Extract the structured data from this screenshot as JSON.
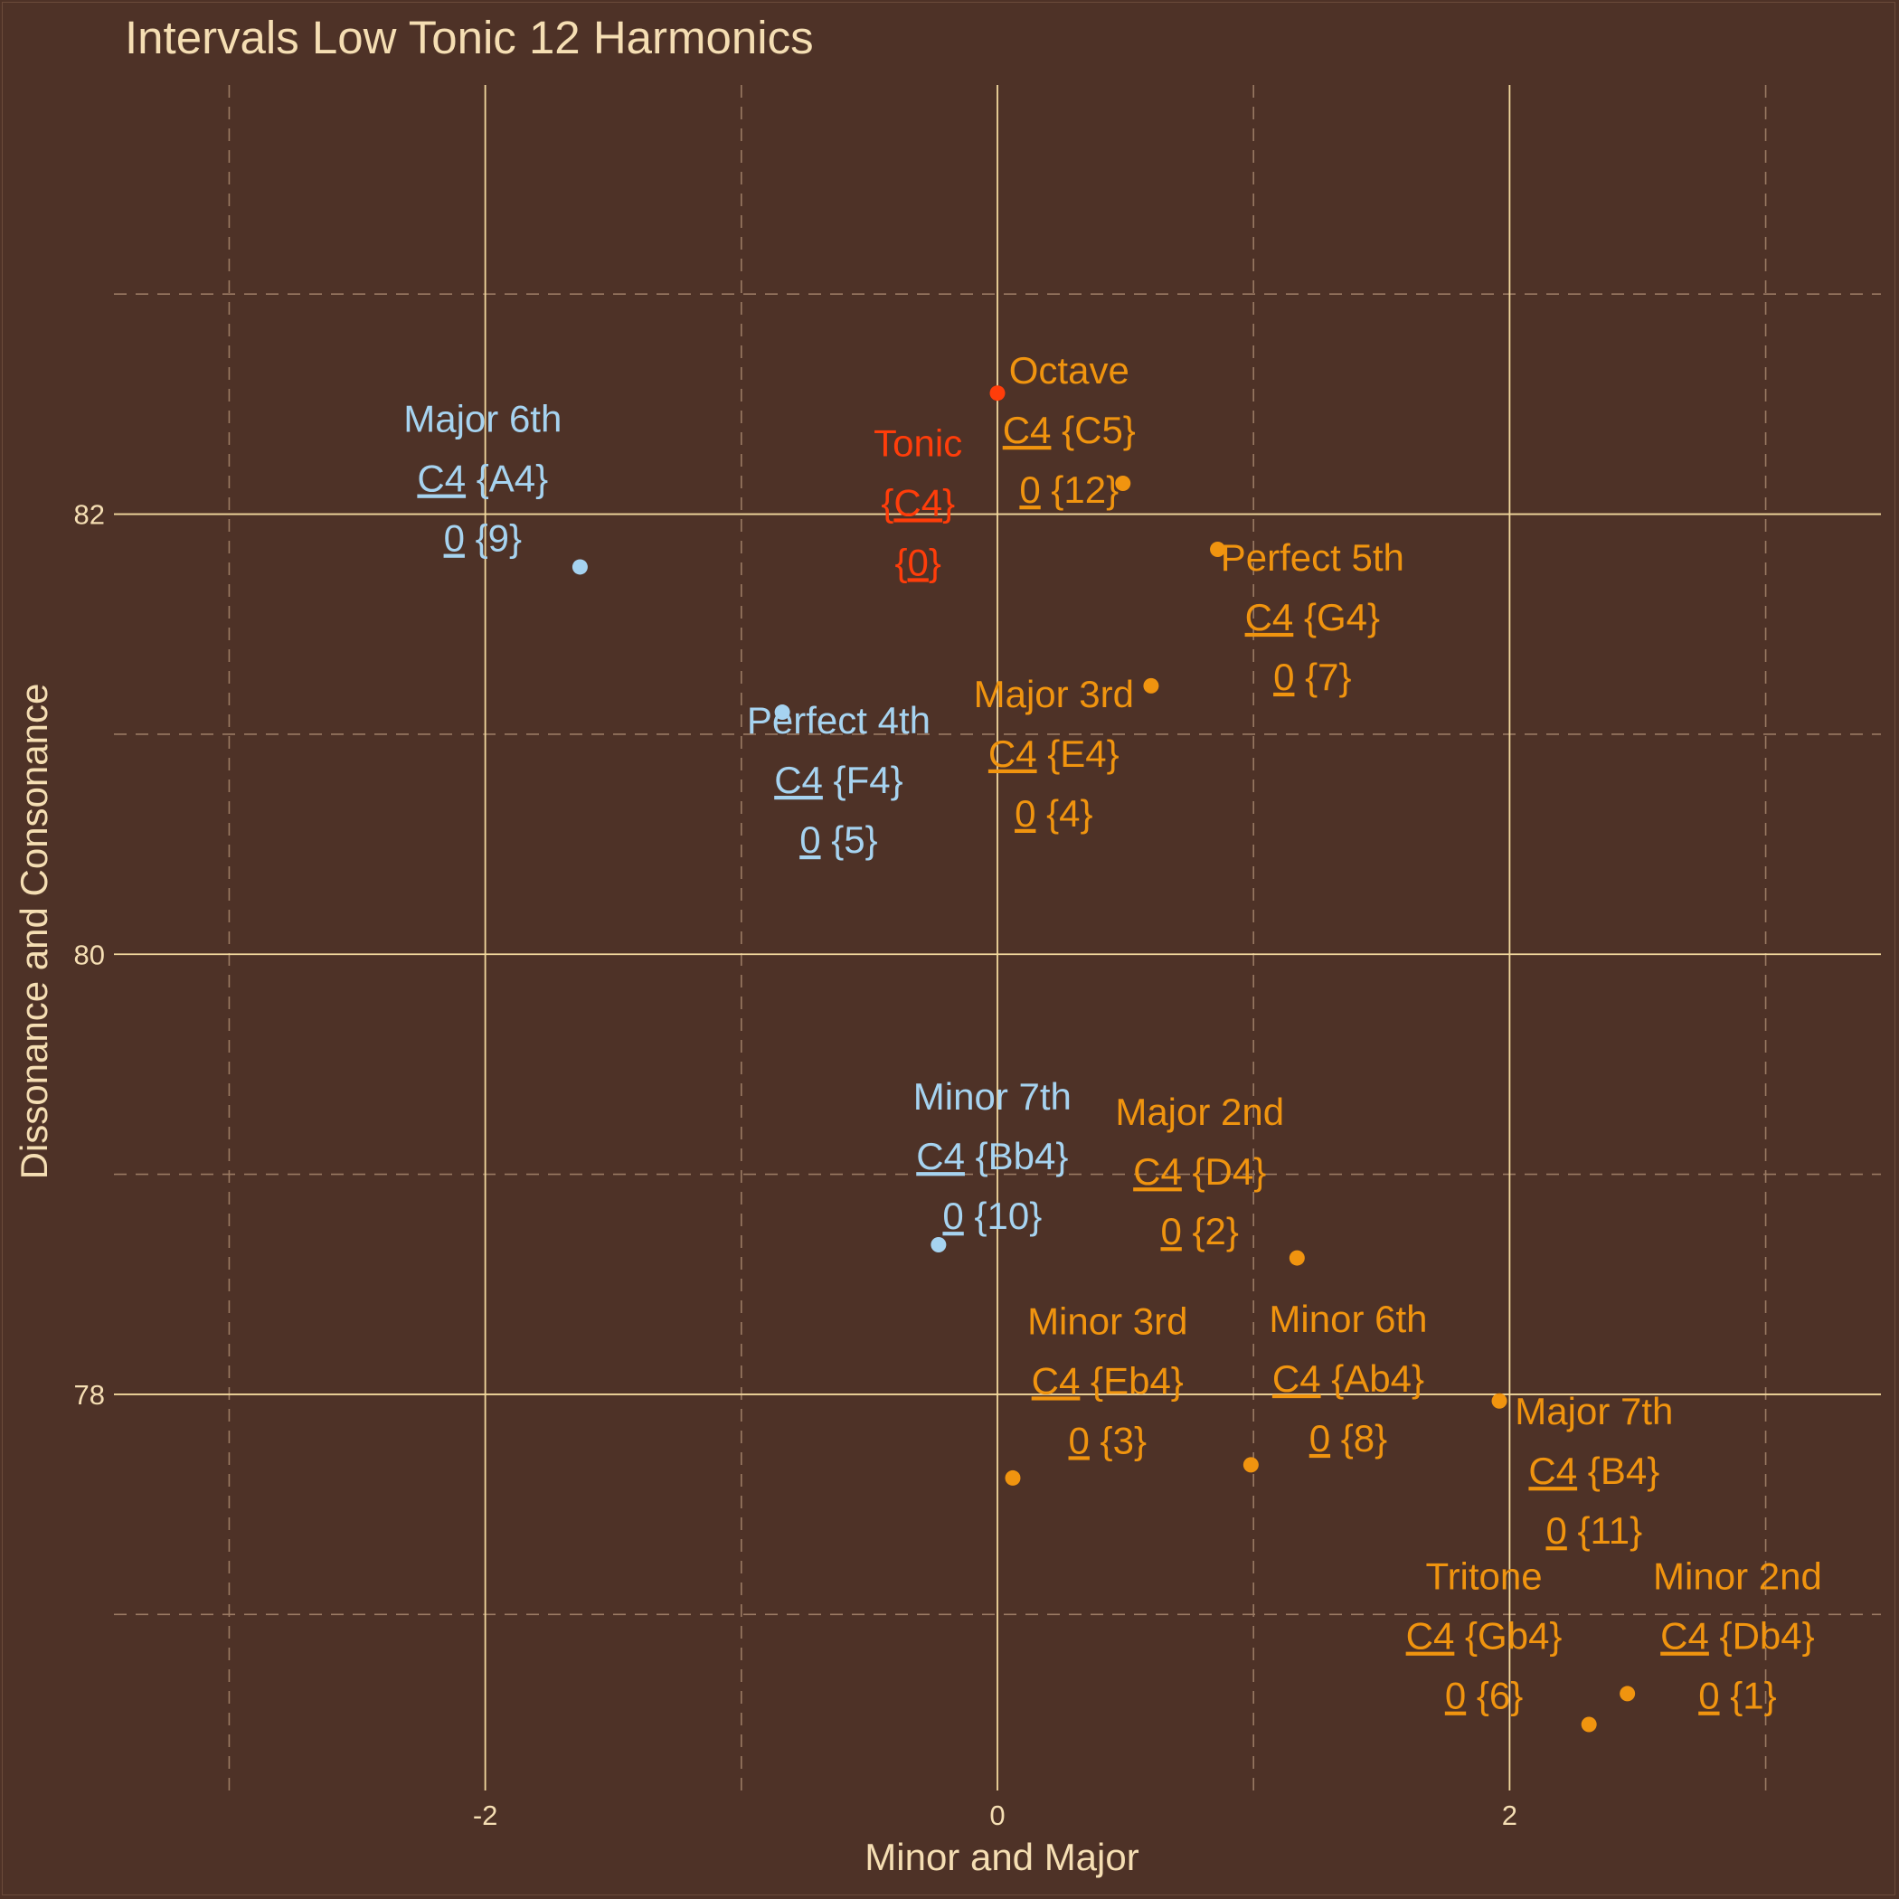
{
  "colors": {
    "background": "#4e3227",
    "text": "#f5deb3",
    "grid": "#f3d99e",
    "minor_grid": "#9a7a63",
    "major_quality": "#f0940f",
    "minor_quality": "#a6d3f0",
    "tonic": "#ff3d0a"
  },
  "chart_data": {
    "type": "scatter",
    "title": "Intervals Low Tonic 12 Harmonics",
    "xlabel": "Minor and Major",
    "ylabel": "Dissonance and Consonance",
    "xlim": [
      -3.45,
      3.45
    ],
    "ylim": [
      76.2,
      83.95
    ],
    "x_ticks": [
      -2,
      0,
      2
    ],
    "x_tick_labels": [
      "-2",
      "0",
      "2"
    ],
    "y_ticks": [
      78,
      80,
      82
    ],
    "y_tick_labels": [
      "78",
      "80",
      "82"
    ],
    "grid": true,
    "points": [
      {
        "name": "Tonic",
        "root": "C4",
        "note": "C4",
        "root_num": "0",
        "num": "0",
        "x": 0.0,
        "y": 82.55,
        "group": "tonic",
        "label_x": -0.31,
        "label_y": 82.05,
        "tonic_style": true
      },
      {
        "name": "Octave",
        "root": "C4",
        "note": "C5",
        "root_num": "0",
        "num": "12",
        "x": 0.49,
        "y": 82.14,
        "group": "major",
        "label_x": 0.28,
        "label_y": 82.38
      },
      {
        "name": "Major 6th",
        "root": "C4",
        "note": "A4",
        "root_num": "0",
        "num": "9",
        "x": -1.63,
        "y": 81.76,
        "group": "minor",
        "label_x": -2.01,
        "label_y": 82.16
      },
      {
        "name": "Perfect 5th",
        "root": "C4",
        "note": "G4",
        "root_num": "0",
        "num": "7",
        "x": 0.86,
        "y": 81.84,
        "group": "major",
        "label_x": 1.23,
        "label_y": 81.53
      },
      {
        "name": "Major 3rd",
        "root": "C4",
        "note": "E4",
        "root_num": "0",
        "num": "4",
        "x": 0.6,
        "y": 81.22,
        "group": "major",
        "label_x": 0.22,
        "label_y": 80.91
      },
      {
        "name": "Perfect 4th",
        "root": "C4",
        "note": "F4",
        "root_num": "0",
        "num": "5",
        "x": -0.84,
        "y": 81.1,
        "group": "minor",
        "label_x": -0.62,
        "label_y": 80.79
      },
      {
        "name": "Minor 7th",
        "root": "C4",
        "note": "Bb4",
        "root_num": "0",
        "num": "10",
        "x": -0.23,
        "y": 78.68,
        "group": "minor",
        "label_x": -0.02,
        "label_y": 79.08
      },
      {
        "name": "Major 2nd",
        "root": "C4",
        "note": "D4",
        "root_num": "0",
        "num": "2",
        "x": 1.17,
        "y": 78.62,
        "group": "major",
        "label_x": 0.79,
        "label_y": 79.01
      },
      {
        "name": "Minor 3rd",
        "root": "C4",
        "note": "Eb4",
        "root_num": "0",
        "num": "3",
        "x": 0.06,
        "y": 77.62,
        "group": "major",
        "label_x": 0.43,
        "label_y": 78.06
      },
      {
        "name": "Minor 6th",
        "root": "C4",
        "note": "Ab4",
        "root_num": "0",
        "num": "8",
        "x": 0.99,
        "y": 77.68,
        "group": "major",
        "label_x": 1.37,
        "label_y": 78.07
      },
      {
        "name": "Major 7th",
        "root": "C4",
        "note": "B4",
        "root_num": "0",
        "num": "11",
        "x": 1.96,
        "y": 77.97,
        "group": "major",
        "label_x": 2.33,
        "label_y": 77.65
      },
      {
        "name": "Tritone",
        "root": "C4",
        "note": "Gb4",
        "root_num": "0",
        "num": "6",
        "x": 2.31,
        "y": 76.5,
        "group": "major",
        "label_x": 1.9,
        "label_y": 76.9
      },
      {
        "name": "Minor 2nd",
        "root": "C4",
        "note": "Db4",
        "root_num": "0",
        "num": "1",
        "x": 2.46,
        "y": 76.64,
        "group": "major",
        "label_x": 2.89,
        "label_y": 76.9
      }
    ]
  }
}
